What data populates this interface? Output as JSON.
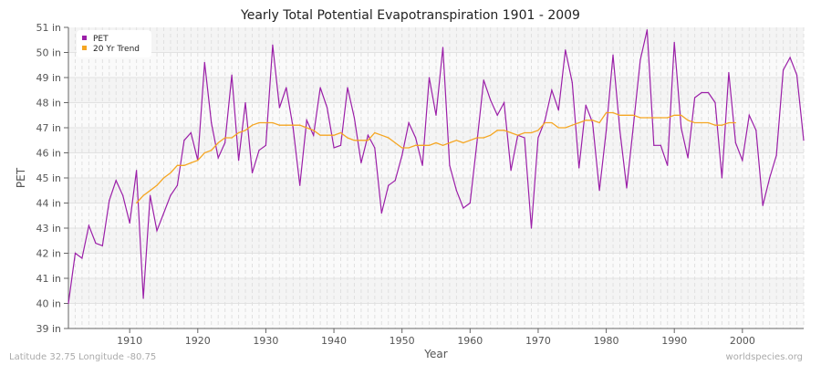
{
  "chart_data": {
    "type": "line",
    "title": "Yearly Total Potential Evapotranspiration 1901 - 2009",
    "xlabel": "Year",
    "ylabel": "PET",
    "xlim": [
      1901,
      2009
    ],
    "ylim": [
      39,
      51
    ],
    "y_unit": "in",
    "x_ticks": [
      1910,
      1920,
      1930,
      1940,
      1950,
      1960,
      1970,
      1980,
      1990,
      2000
    ],
    "y_ticks": [
      39,
      40,
      41,
      42,
      43,
      44,
      45,
      46,
      47,
      48,
      49,
      50,
      51
    ],
    "y_tick_labels": [
      "39 in",
      "40 in",
      "41 in",
      "42 in",
      "43 in",
      "44 in",
      "45 in",
      "46 in",
      "47 in",
      "48 in",
      "49 in",
      "50 in",
      "51 in"
    ],
    "grid": true,
    "legend_position": "top-left",
    "series": [
      {
        "name": "PET",
        "color": "#9b1fa8",
        "x_start": 1901,
        "values": [
          40.0,
          42.0,
          41.8,
          43.1,
          42.4,
          42.3,
          44.1,
          44.9,
          44.3,
          43.2,
          45.3,
          40.2,
          44.3,
          42.9,
          43.6,
          44.3,
          44.7,
          46.5,
          46.8,
          45.7,
          49.6,
          47.2,
          45.8,
          46.4,
          49.1,
          45.7,
          48.0,
          45.2,
          46.1,
          46.3,
          50.3,
          47.8,
          48.6,
          47.0,
          44.7,
          47.3,
          46.7,
          48.6,
          47.8,
          46.2,
          46.3,
          48.6,
          47.4,
          45.6,
          46.7,
          46.2,
          43.6,
          44.7,
          44.9,
          45.9,
          47.2,
          46.6,
          45.5,
          49.0,
          47.5,
          50.2,
          45.5,
          44.5,
          43.8,
          44.0,
          46.4,
          48.9,
          48.1,
          47.5,
          48.0,
          45.3,
          46.7,
          46.6,
          43.0,
          46.6,
          47.3,
          48.5,
          47.7,
          50.1,
          48.8,
          45.4,
          47.9,
          47.2,
          44.5,
          46.9,
          49.9,
          46.9,
          44.6,
          47.1,
          49.7,
          50.9,
          46.3,
          46.3,
          45.5,
          50.4,
          47.0,
          45.8,
          48.2,
          48.4,
          48.4,
          48.0,
          45.0,
          49.2,
          46.4,
          45.7,
          47.5,
          46.9,
          43.9,
          45.0,
          45.9,
          49.3,
          49.8,
          49.1,
          46.5
        ]
      },
      {
        "name": "20 Yr Trend",
        "color": "#f5a623",
        "x_start": 1911,
        "values": [
          44.0,
          44.3,
          44.5,
          44.7,
          45.0,
          45.2,
          45.5,
          45.5,
          45.6,
          45.7,
          46.0,
          46.1,
          46.4,
          46.6,
          46.6,
          46.8,
          46.9,
          47.1,
          47.2,
          47.2,
          47.2,
          47.1,
          47.1,
          47.1,
          47.1,
          47.0,
          46.9,
          46.7,
          46.7,
          46.7,
          46.8,
          46.6,
          46.5,
          46.5,
          46.5,
          46.8,
          46.7,
          46.6,
          46.4,
          46.2,
          46.2,
          46.3,
          46.3,
          46.3,
          46.4,
          46.3,
          46.4,
          46.5,
          46.4,
          46.5,
          46.6,
          46.6,
          46.7,
          46.9,
          46.9,
          46.8,
          46.7,
          46.8,
          46.8,
          46.9,
          47.2,
          47.2,
          47.0,
          47.0,
          47.1,
          47.2,
          47.3,
          47.3,
          47.2,
          47.6,
          47.6,
          47.5,
          47.5,
          47.5,
          47.4,
          47.4,
          47.4,
          47.4,
          47.4,
          47.5,
          47.5,
          47.3,
          47.2,
          47.2,
          47.2,
          47.1,
          47.1,
          47.2,
          47.2
        ]
      }
    ]
  },
  "footer": {
    "location": "Latitude 32.75 Longitude -80.75",
    "source": "worldspecies.org"
  }
}
